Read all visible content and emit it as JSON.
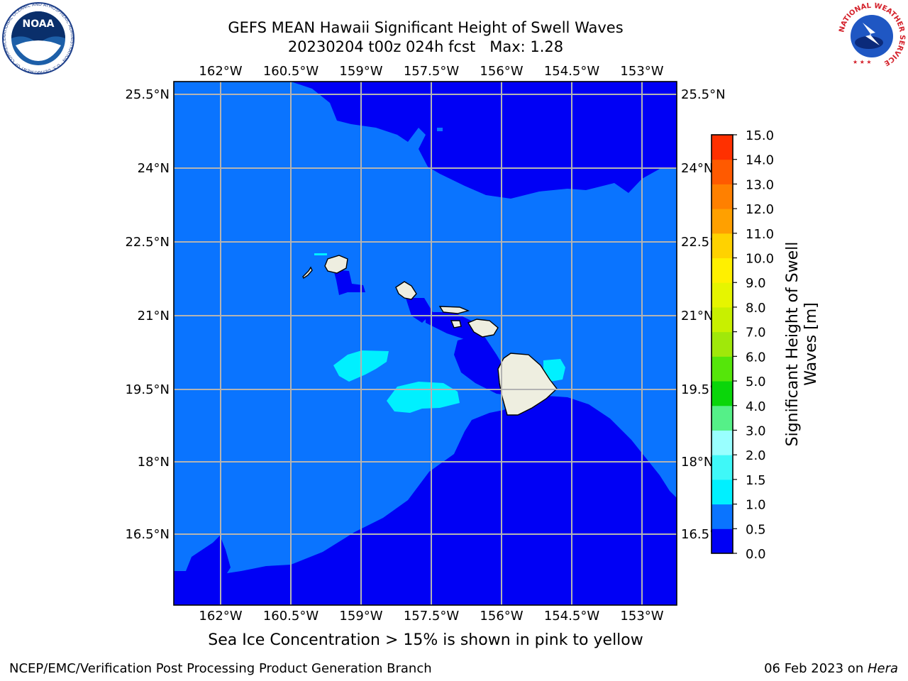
{
  "header": {
    "title_line1": "GEFS MEAN Hawaii Significant Height of Swell Waves",
    "title_line2": "20230204 t00z 024h fcst   Max: 1.28"
  },
  "map": {
    "lon_labels": [
      "162°W",
      "160.5°W",
      "159°W",
      "157.5°W",
      "156°W",
      "154.5°W",
      "153°W"
    ],
    "lat_labels_left": [
      "25.5°N",
      "24°N",
      "22.5°N",
      "21°N",
      "19.5°N",
      "18°N",
      "16.5°N"
    ],
    "lat_labels_right": [
      "25.5°N",
      "24°N",
      "22.5°N",
      "21°N",
      "19.5°N",
      "18°N",
      "16.5°N"
    ]
  },
  "colorbar": {
    "label": "Significant Height of Swell Waves [m]",
    "label_line1": "Significant Height of Swell",
    "label_line2": "Waves [m]",
    "ticks": [
      "0.0",
      "0.5",
      "1.0",
      "1.5",
      "2.0",
      "3.0",
      "4.0",
      "5.0",
      "6.0",
      "7.0",
      "8.0",
      "9.0",
      "10.0",
      "11.0",
      "12.0",
      "13.0",
      "14.0",
      "15.0"
    ],
    "colors": [
      "#0000f5",
      "#0a74ff",
      "#00f0ff",
      "#3ff8f8",
      "#99ffff",
      "#55f088",
      "#0ad60a",
      "#55e60a",
      "#a0e80a",
      "#c8f000",
      "#e6f500",
      "#fff000",
      "#ffd200",
      "#ffa000",
      "#ff8000",
      "#ff5a00",
      "#ff3000",
      "#ff0000"
    ]
  },
  "notes": {
    "ice": "Sea Ice Concentration > 15% is shown in pink to yellow"
  },
  "footer": {
    "left": "NCEP/EMC/Verification Post Processing Product Generation Branch",
    "right_date": "06 Feb 2023 on ",
    "right_system": "Hera"
  },
  "logos": {
    "noaa_text": "NOAA",
    "noaa_ring": "NATIONAL OCEANIC AND ATMOSPHERIC ADMINISTRATION · U.S. DEPARTMENT OF COMMERCE",
    "nws_ring": "NATIONAL WEATHER SERVICE"
  }
}
